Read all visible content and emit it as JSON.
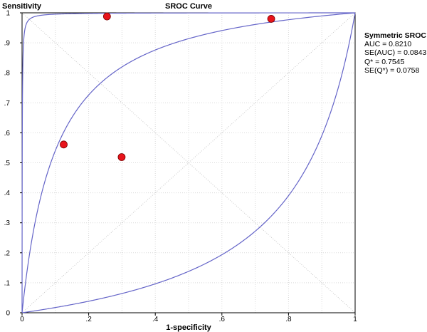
{
  "chart_data": {
    "type": "scatter",
    "title": "SROC Curve",
    "xlabel": "1-specificity",
    "ylabel": "Sensitivity",
    "xlim": [
      0,
      1
    ],
    "ylim": [
      0,
      1
    ],
    "grid": true,
    "x_ticks": [
      "0",
      ".2",
      ".4",
      ".6",
      ".8",
      "1"
    ],
    "y_ticks": [
      "0",
      ".1",
      ".2",
      ".3",
      ".4",
      ".5",
      ".6",
      ".7",
      ".8",
      ".9",
      "1"
    ],
    "points": [
      {
        "x": 0.255,
        "y": 0.988
      },
      {
        "x": 0.748,
        "y": 0.98
      },
      {
        "x": 0.125,
        "y": 0.561
      },
      {
        "x": 0.299,
        "y": 0.519
      }
    ],
    "curves": [
      {
        "name": "Symmetric SROC",
        "dor": 10.6
      },
      {
        "name": "upper confidence curve",
        "dor": 2000
      },
      {
        "name": "lower confidence curve",
        "dor": 0.16
      }
    ],
    "point_color": "#e8141b",
    "curve_color": "#6464c8",
    "annotation": {
      "header": "Symmetric SROC",
      "lines": [
        "AUC = 0.8210",
        "SE(AUC) = 0.0843",
        "Q* = 0.7545",
        "SE(Q*) = 0.0758"
      ]
    }
  }
}
